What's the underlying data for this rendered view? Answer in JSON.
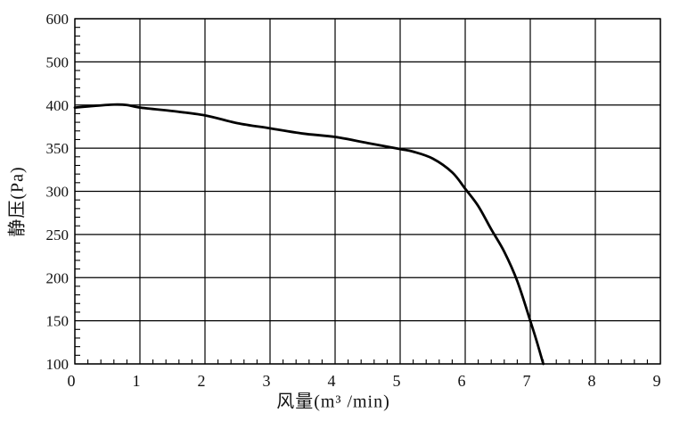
{
  "chart_data": {
    "type": "line",
    "title": "",
    "xlabel": "风量(m³ /min)",
    "ylabel": "静压(Pa)",
    "x_ticks": [
      0,
      1,
      2,
      3,
      4,
      5,
      6,
      7,
      8,
      9
    ],
    "y_ticks": [
      600,
      500,
      400,
      350,
      300,
      250,
      200,
      150,
      100
    ],
    "xlim": [
      0,
      9
    ],
    "ylim_displayed": [
      100,
      600
    ],
    "grid": true,
    "y_scale": "equal-spacing-per-labeled-gridline",
    "minor_divisions_per_major": 5,
    "legend": "none",
    "colors": {
      "curve": "#000000",
      "grid": "#000000",
      "text": "#111111",
      "background": "#ffffff"
    },
    "series": [
      {
        "name": "static-pressure-curve",
        "x": [
          0,
          0.3,
          0.6,
          0.8,
          1,
          1.5,
          2,
          2.5,
          3,
          3.5,
          4,
          4.5,
          5,
          5.2,
          5.5,
          5.8,
          6,
          6.2,
          6.4,
          6.6,
          6.8,
          7,
          7.1,
          7.2
        ],
        "y": [
          397,
          399,
          401,
          400,
          397,
          393,
          388,
          379,
          373,
          367,
          363,
          356,
          349,
          346,
          338,
          322,
          303,
          283,
          256,
          230,
          196,
          150,
          126,
          100
        ]
      }
    ]
  }
}
